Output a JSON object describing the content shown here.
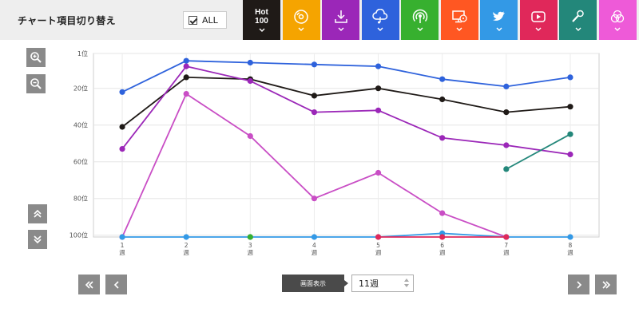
{
  "header": {
    "title": "チャート項目切り替え",
    "all_label": "ALL",
    "hot_label_line1": "Hot",
    "hot_label_line2": "100"
  },
  "categories": [
    {
      "key": "hot100",
      "color": "#1f1a17",
      "icon": "hot100-label"
    },
    {
      "key": "cd",
      "color": "#f5a400",
      "icon": "cd-disc-icon"
    },
    {
      "key": "download",
      "color": "#9b27b8",
      "icon": "download-icon"
    },
    {
      "key": "streaming",
      "color": "#2e62dc",
      "icon": "cloud-music-icon"
    },
    {
      "key": "radio",
      "color": "#37b02f",
      "icon": "radio-broadcast-icon"
    },
    {
      "key": "lookup",
      "color": "#ff5722",
      "icon": "computer-disc-icon"
    },
    {
      "key": "twitter",
      "color": "#3399e6",
      "icon": "twitter-bird-icon"
    },
    {
      "key": "video",
      "color": "#e0285a",
      "icon": "video-play-icon"
    },
    {
      "key": "karaoke",
      "color": "#23877a",
      "icon": "microphone-icon"
    },
    {
      "key": "total",
      "color": "#ee5ad8",
      "icon": "venn-circles-icon"
    }
  ],
  "controls": {
    "display_label": "画面表示",
    "week_value": "11週"
  },
  "chart_data": {
    "type": "line",
    "x": [
      1,
      2,
      3,
      4,
      5,
      6,
      7,
      8
    ],
    "xticks": [
      "1\n週",
      "2\n週",
      "3\n週",
      "4\n週",
      "5\n週",
      "6\n週",
      "7\n週",
      "8\n週"
    ],
    "yticks": [
      {
        "value": 1,
        "label": "1位"
      },
      {
        "value": 20,
        "label": "20位"
      },
      {
        "value": 40,
        "label": "40位"
      },
      {
        "value": 60,
        "label": "60位"
      },
      {
        "value": 80,
        "label": "80位"
      },
      {
        "value": 100,
        "label": "100位"
      }
    ],
    "ylim": [
      1,
      101
    ],
    "y_inverted": true,
    "grid": true,
    "series": [
      {
        "color": "#1f1a17",
        "values": [
          41,
          14,
          15,
          24,
          20,
          26,
          33,
          30
        ]
      },
      {
        "color": "#2e62dc",
        "values": [
          22,
          5,
          6,
          7,
          8,
          15,
          19,
          14
        ]
      },
      {
        "color": "#9b27b8",
        "values": [
          53,
          8,
          16,
          33,
          32,
          47,
          51,
          56
        ]
      },
      {
        "color": "#c94ec5",
        "values": [
          101,
          23,
          46,
          80,
          66,
          88,
          101,
          null
        ]
      },
      {
        "color": "#23877a",
        "values": [
          null,
          null,
          null,
          null,
          null,
          null,
          64,
          45
        ]
      },
      {
        "color": "#3399e6",
        "values": [
          101,
          101,
          101,
          101,
          101,
          99,
          101,
          101
        ]
      },
      {
        "color": "#37b02f",
        "values": [
          null,
          null,
          101,
          null,
          null,
          null,
          null,
          null
        ]
      },
      {
        "color": "#e0285a",
        "values": [
          null,
          null,
          null,
          null,
          101,
          101,
          101,
          null
        ]
      }
    ]
  }
}
